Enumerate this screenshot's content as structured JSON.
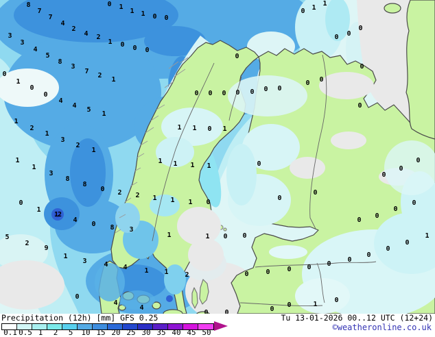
{
  "legend": {
    "title": "Precipitation (12h) [mm] GFS 0.25",
    "values": [
      "0.1",
      "0.5",
      "1",
      "2",
      "5",
      "10",
      "15",
      "20",
      "25",
      "30",
      "35",
      "40",
      "45",
      "50"
    ],
    "colors": [
      "#fcfefe",
      "#d2f7f7",
      "#a9f0f0",
      "#7beaea",
      "#58d0ee",
      "#55abe5",
      "#3e8edf",
      "#2b6ad8",
      "#2348ce",
      "#2a2ec5",
      "#5a1fc8",
      "#8e14d3",
      "#d414de",
      "#f13ef1"
    ],
    "arrow_color": "#b0128c"
  },
  "footer": {
    "datetime": "Tu 13-01-2026 00..12 UTC (12+24)",
    "copyright": "©weatheronline.co.uk",
    "copyright_color": "#3434b4"
  },
  "map": {
    "unit": "mm",
    "values": [
      [
        41,
        8,
        "8"
      ],
      [
        57,
        17,
        "7"
      ],
      [
        73,
        26,
        "7"
      ],
      [
        91,
        35,
        "4"
      ],
      [
        107,
        43,
        "2"
      ],
      [
        125,
        50,
        "4"
      ],
      [
        143,
        55,
        "2"
      ],
      [
        159,
        7,
        "0"
      ],
      [
        176,
        11,
        "1"
      ],
      [
        192,
        17,
        "1"
      ],
      [
        208,
        21,
        "1"
      ],
      [
        225,
        25,
        "0"
      ],
      [
        242,
        27,
        "0"
      ],
      [
        14,
        53,
        "3"
      ],
      [
        32,
        63,
        "3"
      ],
      [
        51,
        73,
        "4"
      ],
      [
        69,
        82,
        "5"
      ],
      [
        87,
        91,
        "8"
      ],
      [
        106,
        98,
        "3"
      ],
      [
        126,
        105,
        "7"
      ],
      [
        145,
        111,
        "2"
      ],
      [
        165,
        117,
        "1"
      ],
      [
        160,
        62,
        "1"
      ],
      [
        178,
        66,
        "0"
      ],
      [
        196,
        71,
        "0"
      ],
      [
        214,
        74,
        "0"
      ],
      [
        6,
        109,
        "0"
      ],
      [
        26,
        120,
        "1"
      ],
      [
        46,
        129,
        "0"
      ],
      [
        66,
        139,
        "0"
      ],
      [
        88,
        148,
        "4"
      ],
      [
        108,
        155,
        "4"
      ],
      [
        129,
        161,
        "5"
      ],
      [
        151,
        167,
        "1"
      ],
      [
        345,
        83,
        "0"
      ],
      [
        286,
        137,
        "0"
      ],
      [
        306,
        137,
        "0"
      ],
      [
        326,
        137,
        "0"
      ],
      [
        346,
        136,
        "0"
      ],
      [
        367,
        135,
        "0"
      ],
      [
        387,
        131,
        "0"
      ],
      [
        407,
        130,
        "0"
      ],
      [
        441,
        17,
        "0"
      ],
      [
        457,
        12,
        "1"
      ],
      [
        473,
        6,
        "1"
      ],
      [
        490,
        55,
        "0"
      ],
      [
        508,
        50,
        "0"
      ],
      [
        525,
        42,
        "0"
      ],
      [
        527,
        98,
        "0"
      ],
      [
        468,
        117,
        "0"
      ],
      [
        448,
        122,
        "0"
      ],
      [
        524,
        155,
        "0"
      ],
      [
        23,
        178,
        "1"
      ],
      [
        46,
        188,
        "2"
      ],
      [
        68,
        196,
        "1"
      ],
      [
        91,
        205,
        "3"
      ],
      [
        113,
        213,
        "2"
      ],
      [
        136,
        220,
        "1"
      ],
      [
        25,
        235,
        "1"
      ],
      [
        49,
        245,
        "1"
      ],
      [
        74,
        254,
        "3"
      ],
      [
        98,
        262,
        "8"
      ],
      [
        123,
        270,
        "8"
      ],
      [
        149,
        277,
        "0"
      ],
      [
        174,
        282,
        "2"
      ],
      [
        200,
        286,
        "2"
      ],
      [
        30,
        297,
        "0"
      ],
      [
        56,
        307,
        "1"
      ],
      [
        84,
        314,
        "12"
      ],
      [
        109,
        322,
        "4"
      ],
      [
        136,
        328,
        "0"
      ],
      [
        163,
        333,
        "8"
      ],
      [
        191,
        336,
        "3"
      ],
      [
        261,
        187,
        "1"
      ],
      [
        283,
        188,
        "1"
      ],
      [
        305,
        189,
        "0"
      ],
      [
        327,
        189,
        "1"
      ],
      [
        233,
        236,
        "1"
      ],
      [
        255,
        240,
        "1"
      ],
      [
        280,
        242,
        "1"
      ],
      [
        304,
        243,
        "1"
      ],
      [
        377,
        240,
        "0"
      ],
      [
        225,
        290,
        "1"
      ],
      [
        251,
        293,
        "1"
      ],
      [
        277,
        296,
        "1"
      ],
      [
        303,
        296,
        "0"
      ],
      [
        407,
        290,
        "0"
      ],
      [
        609,
        235,
        "0"
      ],
      [
        584,
        247,
        "0"
      ],
      [
        559,
        256,
        "0"
      ],
      [
        459,
        282,
        "0"
      ],
      [
        603,
        297,
        "0"
      ],
      [
        576,
        306,
        "0"
      ],
      [
        549,
        316,
        "0"
      ],
      [
        523,
        322,
        "0"
      ],
      [
        10,
        347,
        "5"
      ],
      [
        39,
        356,
        "2"
      ],
      [
        67,
        363,
        "9"
      ],
      [
        95,
        375,
        "1"
      ],
      [
        123,
        382,
        "3"
      ],
      [
        154,
        387,
        "4"
      ],
      [
        182,
        391,
        "4"
      ],
      [
        246,
        344,
        "1"
      ],
      [
        302,
        346,
        "1"
      ],
      [
        328,
        346,
        "0"
      ],
      [
        356,
        345,
        "0"
      ],
      [
        213,
        396,
        "1"
      ],
      [
        242,
        398,
        "1"
      ],
      [
        272,
        402,
        "2"
      ],
      [
        359,
        401,
        "0"
      ],
      [
        390,
        398,
        "0"
      ],
      [
        421,
        394,
        "0"
      ],
      [
        112,
        434,
        "0"
      ],
      [
        168,
        443,
        "4"
      ],
      [
        206,
        450,
        "4"
      ],
      [
        300,
        457,
        "0"
      ],
      [
        330,
        457,
        "0"
      ],
      [
        396,
        452,
        "0"
      ],
      [
        421,
        446,
        "0"
      ],
      [
        450,
        391,
        "0"
      ],
      [
        479,
        386,
        "0"
      ],
      [
        509,
        380,
        "0"
      ],
      [
        537,
        373,
        "0"
      ],
      [
        565,
        364,
        "0"
      ],
      [
        593,
        355,
        "0"
      ],
      [
        622,
        345,
        "1"
      ],
      [
        490,
        439,
        "0"
      ],
      [
        459,
        445,
        "1"
      ]
    ]
  }
}
